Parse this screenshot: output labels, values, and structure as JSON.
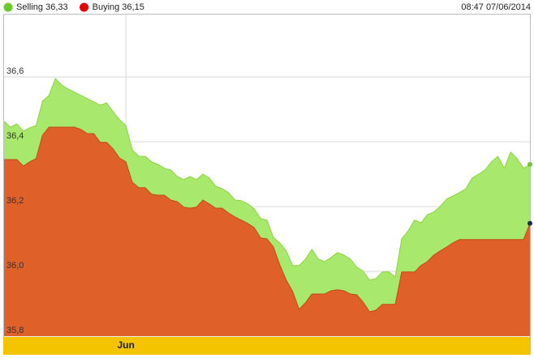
{
  "chart_data": {
    "type": "area",
    "timestamp": "08:47 07/06/2014",
    "categories": [
      null,
      null,
      null,
      null,
      null,
      null,
      null,
      null,
      null,
      null,
      null,
      null,
      null,
      null,
      null,
      null,
      null,
      null,
      null,
      "Jun",
      null,
      null,
      null,
      null,
      null,
      null,
      null,
      null,
      null,
      null,
      null,
      null,
      null,
      null,
      null,
      null,
      null,
      null,
      null,
      null,
      null,
      null,
      null,
      null,
      null,
      null,
      null,
      null,
      null,
      null,
      null,
      null,
      null,
      null,
      null,
      null,
      null,
      null,
      null,
      null,
      null,
      null,
      null,
      null,
      null,
      null,
      null,
      null,
      null,
      null,
      null,
      null,
      null,
      null,
      null,
      null,
      null,
      null,
      null,
      null,
      null,
      null,
      null
    ],
    "series": [
      {
        "name": "Selling 36,33",
        "color": "#6cc92a",
        "fill": "#a8e86c",
        "values": [
          36.463,
          36.445,
          36.455,
          36.433,
          36.443,
          36.45,
          36.525,
          36.543,
          36.595,
          36.575,
          36.563,
          36.553,
          36.543,
          36.533,
          36.523,
          36.513,
          36.52,
          36.493,
          36.468,
          36.45,
          36.375,
          36.355,
          36.355,
          36.338,
          36.33,
          36.318,
          36.313,
          36.293,
          36.283,
          36.293,
          36.283,
          36.3,
          36.288,
          36.263,
          36.255,
          36.243,
          36.22,
          36.218,
          36.208,
          36.193,
          36.163,
          36.158,
          36.105,
          36.088,
          36.063,
          36.018,
          36.018,
          36.038,
          36.068,
          36.038,
          36.03,
          36.043,
          36.058,
          36.05,
          36.038,
          36.013,
          36,
          35.973,
          35.978,
          35.998,
          35.998,
          35.983,
          36.1,
          36.125,
          36.158,
          36.15,
          36.175,
          36.183,
          36.2,
          36.223,
          36.233,
          36.243,
          36.255,
          36.288,
          36.3,
          36.313,
          36.338,
          36.355,
          36.318,
          36.368,
          36.348,
          36.318,
          36.33
        ]
      },
      {
        "name": "Buying 36,15",
        "color": "#e00000",
        "fill": "#e0602a",
        "values": [
          36.345,
          36.345,
          36.345,
          36.325,
          36.338,
          36.348,
          36.42,
          36.445,
          36.445,
          36.445,
          36.445,
          36.445,
          36.438,
          36.425,
          36.425,
          36.398,
          36.398,
          36.378,
          36.35,
          36.338,
          36.275,
          36.258,
          36.258,
          36.238,
          36.235,
          36.235,
          36.22,
          36.215,
          36.198,
          36.195,
          36.198,
          36.22,
          36.208,
          36.195,
          36.195,
          36.18,
          36.168,
          36.158,
          36.148,
          36.135,
          36.103,
          36.1,
          36.075,
          36.02,
          35.973,
          35.938,
          35.883,
          35.903,
          35.93,
          35.93,
          35.93,
          35.94,
          35.943,
          35.94,
          35.93,
          35.928,
          35.905,
          35.875,
          35.88,
          35.898,
          35.898,
          35.898,
          35.998,
          35.998,
          35.998,
          36.018,
          36.03,
          36.05,
          36.063,
          36.075,
          36.088,
          36.098,
          36.098,
          36.098,
          36.098,
          36.098,
          36.098,
          36.098,
          36.098,
          36.098,
          36.098,
          36.098,
          36.148
        ]
      }
    ],
    "ylim": [
      35.8,
      36.8
    ],
    "yticks": [
      {
        "value": 35.8,
        "label": "35,8"
      },
      {
        "value": 36.0,
        "label": "36,0"
      },
      {
        "value": 36.2,
        "label": "36,2"
      },
      {
        "value": 36.4,
        "label": "36,4"
      },
      {
        "value": 36.6,
        "label": "36,6"
      }
    ],
    "grid": true
  }
}
